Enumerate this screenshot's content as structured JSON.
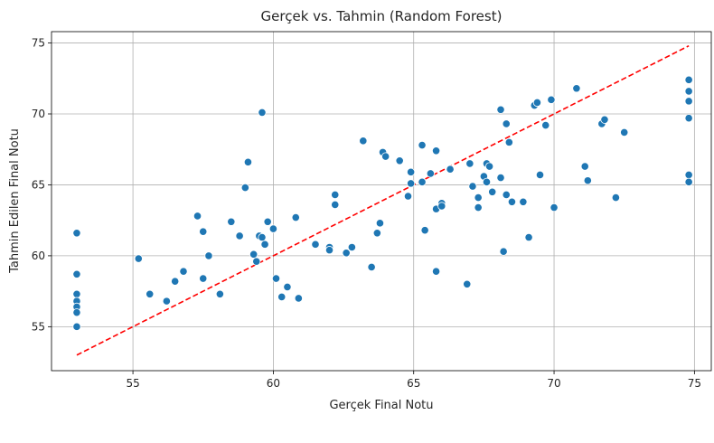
{
  "chart_data": {
    "type": "scatter",
    "title": "Gerçek vs. Tahmin (Random Forest)",
    "xlabel": "Gerçek Final Notu",
    "ylabel": "Tahmin Edilen Final Notu",
    "xlim": [
      52.1,
      75.6
    ],
    "ylim": [
      51.9,
      75.8
    ],
    "xticks": [
      55,
      60,
      65,
      70,
      75
    ],
    "yticks": [
      55,
      60,
      65,
      70,
      75
    ],
    "grid": true,
    "point_color": "#1f77b4",
    "reference_line": {
      "x": [
        53.0,
        74.8
      ],
      "y": [
        53.0,
        74.8
      ],
      "color": "#ff0000",
      "style": "dashed"
    },
    "points": [
      [
        53.0,
        61.6
      ],
      [
        53.0,
        58.7
      ],
      [
        53.0,
        57.3
      ],
      [
        53.0,
        56.8
      ],
      [
        53.0,
        56.4
      ],
      [
        53.0,
        56.0
      ],
      [
        53.0,
        55.0
      ],
      [
        55.2,
        59.8
      ],
      [
        55.6,
        57.3
      ],
      [
        56.2,
        56.8
      ],
      [
        56.5,
        58.2
      ],
      [
        56.8,
        58.9
      ],
      [
        57.3,
        62.8
      ],
      [
        57.5,
        61.7
      ],
      [
        57.5,
        58.4
      ],
      [
        57.7,
        60.0
      ],
      [
        58.1,
        57.3
      ],
      [
        58.5,
        62.4
      ],
      [
        58.8,
        61.4
      ],
      [
        59.0,
        64.8
      ],
      [
        59.1,
        66.6
      ],
      [
        59.3,
        60.1
      ],
      [
        59.4,
        59.6
      ],
      [
        59.5,
        61.4
      ],
      [
        59.6,
        61.3
      ],
      [
        59.6,
        70.1
      ],
      [
        59.7,
        60.8
      ],
      [
        59.8,
        62.4
      ],
      [
        60.0,
        61.9
      ],
      [
        60.1,
        58.4
      ],
      [
        60.3,
        57.1
      ],
      [
        60.5,
        57.8
      ],
      [
        60.8,
        62.7
      ],
      [
        60.9,
        57.0
      ],
      [
        61.5,
        60.8
      ],
      [
        62.0,
        60.6
      ],
      [
        62.0,
        60.4
      ],
      [
        62.2,
        64.3
      ],
      [
        62.2,
        63.6
      ],
      [
        62.6,
        60.2
      ],
      [
        62.8,
        60.6
      ],
      [
        63.2,
        68.1
      ],
      [
        63.5,
        59.2
      ],
      [
        63.7,
        61.6
      ],
      [
        63.8,
        62.3
      ],
      [
        63.9,
        67.3
      ],
      [
        64.0,
        67.0
      ],
      [
        64.5,
        66.7
      ],
      [
        64.8,
        64.2
      ],
      [
        64.9,
        65.9
      ],
      [
        64.9,
        65.1
      ],
      [
        65.3,
        67.8
      ],
      [
        65.3,
        65.2
      ],
      [
        65.4,
        61.8
      ],
      [
        65.6,
        65.8
      ],
      [
        65.8,
        67.4
      ],
      [
        65.8,
        58.9
      ],
      [
        65.8,
        63.3
      ],
      [
        66.0,
        63.7
      ],
      [
        66.0,
        63.5
      ],
      [
        66.3,
        66.1
      ],
      [
        66.9,
        58.0
      ],
      [
        67.0,
        66.5
      ],
      [
        67.1,
        64.9
      ],
      [
        67.3,
        63.4
      ],
      [
        67.3,
        64.1
      ],
      [
        67.5,
        65.6
      ],
      [
        67.6,
        65.2
      ],
      [
        67.6,
        66.5
      ],
      [
        67.7,
        66.3
      ],
      [
        67.8,
        64.5
      ],
      [
        68.1,
        70.3
      ],
      [
        68.1,
        65.5
      ],
      [
        68.2,
        60.3
      ],
      [
        68.3,
        69.3
      ],
      [
        68.3,
        64.3
      ],
      [
        68.4,
        68.0
      ],
      [
        68.5,
        63.8
      ],
      [
        68.9,
        63.8
      ],
      [
        69.1,
        61.3
      ],
      [
        69.3,
        70.6
      ],
      [
        69.4,
        70.8
      ],
      [
        69.5,
        65.7
      ],
      [
        69.7,
        69.2
      ],
      [
        69.9,
        71.0
      ],
      [
        70.0,
        63.4
      ],
      [
        70.8,
        71.8
      ],
      [
        71.1,
        66.3
      ],
      [
        71.2,
        65.3
      ],
      [
        71.7,
        69.3
      ],
      [
        71.8,
        69.6
      ],
      [
        72.2,
        64.1
      ],
      [
        72.5,
        68.7
      ],
      [
        74.8,
        72.4
      ],
      [
        74.8,
        71.6
      ],
      [
        74.8,
        70.9
      ],
      [
        74.8,
        69.7
      ],
      [
        74.8,
        65.7
      ],
      [
        74.8,
        65.2
      ]
    ]
  }
}
